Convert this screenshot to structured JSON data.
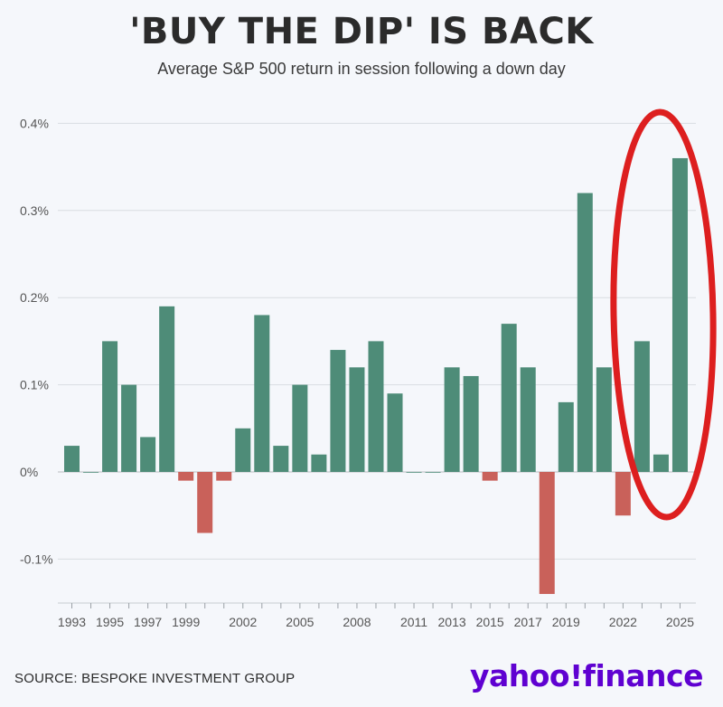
{
  "header": {
    "title": "'BUY THE DIP' IS BACK",
    "subtitle": "Average S&P 500 return in session following a down day"
  },
  "footer": {
    "source": "SOURCE: BESPOKE INVESTMENT GROUP",
    "logo_text": "yahoo!finance"
  },
  "colors": {
    "positive": "#4e8c78",
    "negative": "#c9615a",
    "highlight_circle": "#dd1f1f",
    "logo": "#5f01d1"
  },
  "chart_data": {
    "type": "bar",
    "x": [
      1993,
      1994,
      1995,
      1996,
      1997,
      1998,
      1999,
      2000,
      2001,
      2002,
      2003,
      2004,
      2005,
      2006,
      2007,
      2008,
      2009,
      2010,
      2011,
      2012,
      2013,
      2014,
      2015,
      2016,
      2017,
      2018,
      2019,
      2020,
      2021,
      2022,
      2023,
      2024,
      2025
    ],
    "values": [
      0.03,
      0.0,
      0.15,
      0.1,
      0.04,
      0.19,
      -0.01,
      -0.07,
      -0.01,
      0.05,
      0.18,
      0.03,
      0.1,
      0.02,
      0.14,
      0.12,
      0.15,
      0.09,
      0.0,
      0.0,
      0.12,
      0.11,
      -0.01,
      0.17,
      0.12,
      -0.14,
      0.08,
      0.32,
      0.12,
      -0.05,
      0.15,
      0.02,
      0.36
    ],
    "x_tick_labels": [
      "1993",
      "1995",
      "1997",
      "1999",
      "2002",
      "2005",
      "2008",
      "2011",
      "2013",
      "2015",
      "2017",
      "2019",
      "2022",
      "2025"
    ],
    "y_ticks": [
      -0.1,
      0,
      0.1,
      0.2,
      0.3,
      0.4
    ],
    "y_tick_labels": [
      "-0.1%",
      "0%",
      "0.1%",
      "0.2%",
      "0.3%",
      "0.4%"
    ],
    "ylim": [
      -0.15,
      0.41
    ],
    "grid": true,
    "annotation": "red ellipse highlighting 2023-2025"
  }
}
